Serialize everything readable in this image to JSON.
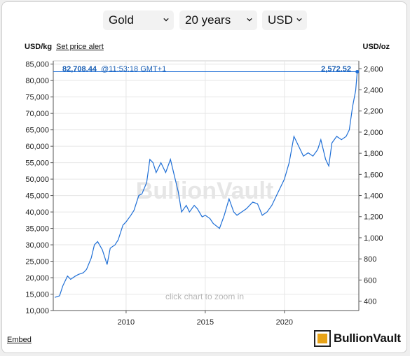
{
  "controls": {
    "metal": "Gold",
    "period": "20 years",
    "currency": "USD"
  },
  "labels": {
    "unit_left": "USD/kg",
    "unit_right": "USD/oz",
    "set_price_alert": "Set price alert",
    "embed": "Embed",
    "hint": "click chart to zoom in",
    "watermark": "BullionVault",
    "brand": "BullionVault"
  },
  "current": {
    "price_kg": "82,708.44",
    "time": "@11:53:18 GMT+1",
    "price_oz": "2,572.52"
  },
  "colors": {
    "line": "#1f6fd6",
    "price_text": "#1a5fb4",
    "grid": "#e6e6e6",
    "logo_gold": "#e8a317"
  },
  "chart_data": {
    "type": "line",
    "title": "",
    "xlabel": "",
    "ylabel_left": "USD/kg",
    "ylabel_right": "USD/oz",
    "xlim": [
      2005.4,
      2024.7
    ],
    "ylim_left": [
      10000,
      86000
    ],
    "ylim_right": [
      311,
      2675
    ],
    "x_ticks": [
      2010,
      2015,
      2020
    ],
    "y_ticks_left": [
      "10,000",
      "15,000",
      "20,000",
      "25,000",
      "30,000",
      "35,000",
      "40,000",
      "45,000",
      "50,000",
      "55,000",
      "60,000",
      "65,000",
      "70,000",
      "75,000",
      "80,000",
      "85,000"
    ],
    "y_ticks_right": [
      "400",
      "600",
      "800",
      "1,000",
      "1,200",
      "1,400",
      "1,600",
      "1,800",
      "2,000",
      "2,200",
      "2,400",
      "2,600"
    ],
    "grid": true,
    "series": [
      {
        "x": [
          2005.5,
          2005.8,
          2006.0,
          2006.3,
          2006.5,
          2006.8,
          2007.0,
          2007.3,
          2007.5,
          2007.8,
          2008.0,
          2008.2,
          2008.5,
          2008.8,
          2009.0,
          2009.3,
          2009.5,
          2009.8,
          2010.0,
          2010.3,
          2010.5,
          2010.8,
          2011.0,
          2011.3,
          2011.5,
          2011.7,
          2011.9,
          2012.2,
          2012.5,
          2012.8,
          2013.0,
          2013.3,
          2013.5,
          2013.8,
          2014.0,
          2014.3,
          2014.5,
          2014.8,
          2015.0,
          2015.3,
          2015.5,
          2015.9,
          2016.2,
          2016.5,
          2016.8,
          2017.0,
          2017.3,
          2017.6,
          2018.0,
          2018.3,
          2018.6,
          2018.9,
          2019.2,
          2019.5,
          2019.8,
          2020.0,
          2020.3,
          2020.6,
          2020.9,
          2021.2,
          2021.5,
          2021.8,
          2022.1,
          2022.3,
          2022.6,
          2022.8,
          2023.0,
          2023.3,
          2023.6,
          2023.9,
          2024.1,
          2024.3,
          2024.5,
          2024.6
        ],
        "values": [
          14000,
          14500,
          17500,
          20500,
          19500,
          20500,
          21000,
          21500,
          22500,
          26000,
          30000,
          31000,
          28500,
          24000,
          29000,
          30000,
          31500,
          36000,
          37000,
          39000,
          40500,
          45000,
          45500,
          49000,
          56000,
          55000,
          52000,
          55000,
          52000,
          56000,
          52000,
          46000,
          40000,
          42000,
          40000,
          42000,
          41000,
          38500,
          39000,
          38000,
          36500,
          35000,
          39000,
          44000,
          40000,
          39000,
          40000,
          41000,
          43000,
          42500,
          39000,
          40000,
          42000,
          45000,
          48000,
          50000,
          55000,
          63000,
          60000,
          57000,
          58000,
          57000,
          59000,
          62000,
          56000,
          54000,
          61000,
          63000,
          62000,
          63000,
          65000,
          72000,
          77000,
          82708
        ]
      }
    ]
  }
}
